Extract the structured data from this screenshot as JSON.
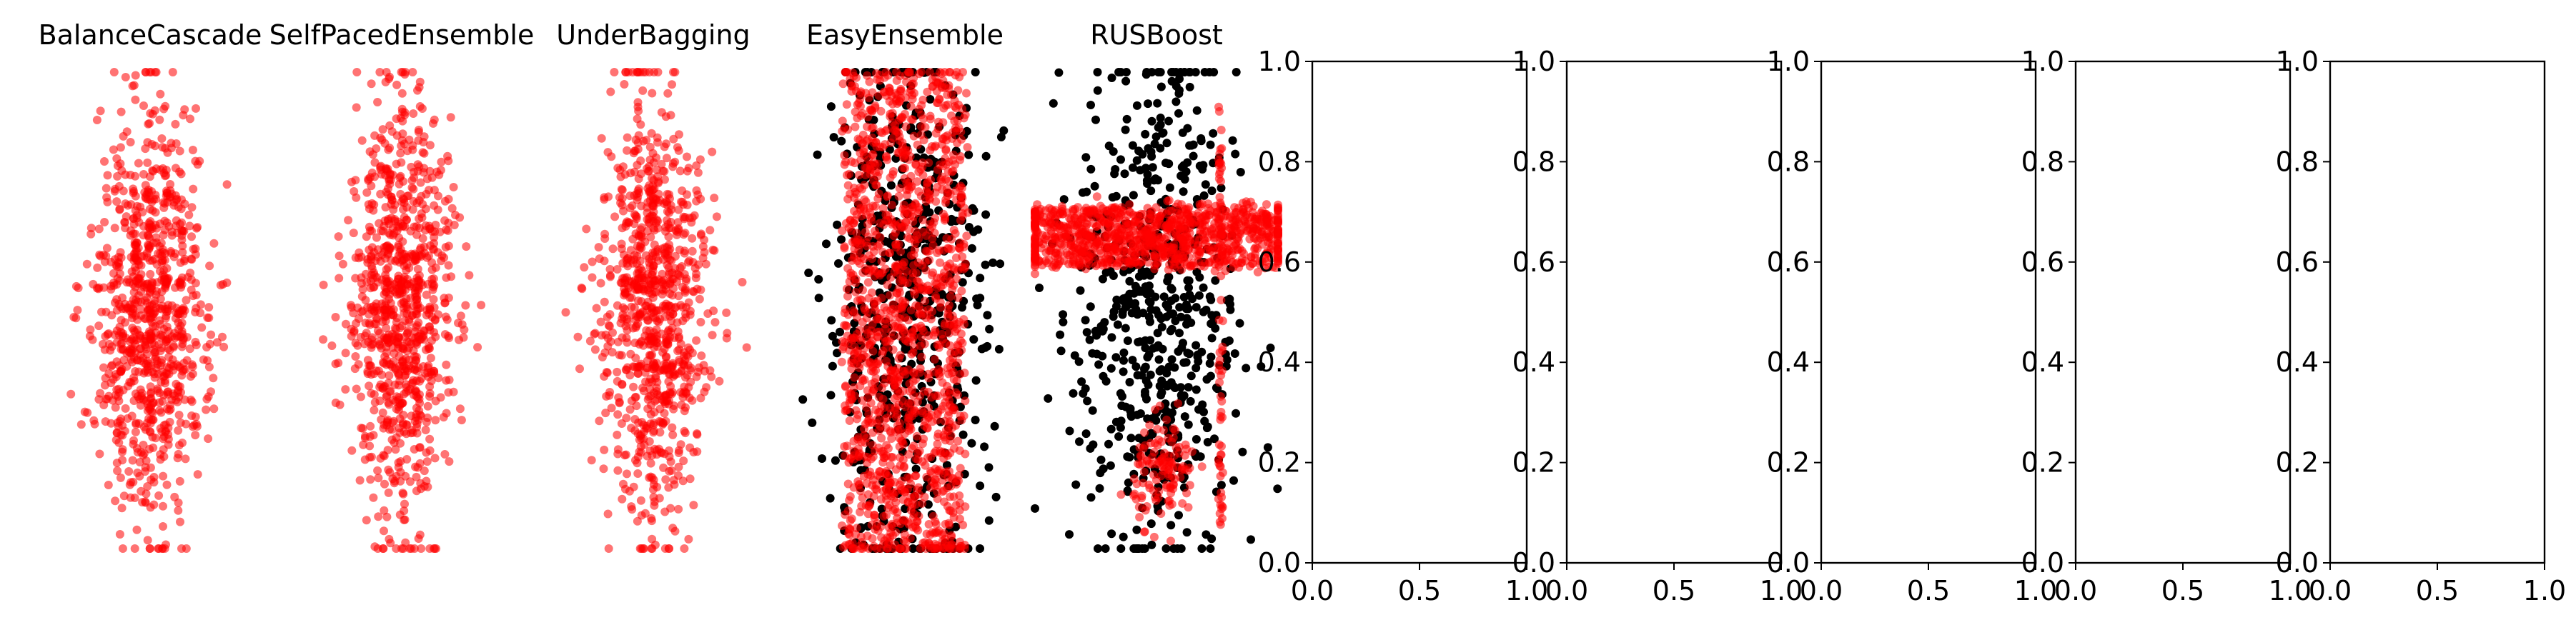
{
  "chart_data": [
    {
      "type": "scatter",
      "title": "BalanceCascade",
      "axis": "off",
      "series": [
        {
          "color": "#ff0000",
          "alpha": 0.55,
          "count": 900,
          "shape": "diamond-blob",
          "cx": 0.0,
          "cy": 0.0,
          "sx": 1.0,
          "sy": 2.4
        }
      ]
    },
    {
      "type": "scatter",
      "title": "SelfPacedEnsemble",
      "axis": "off",
      "series": [
        {
          "color": "#ff0000",
          "alpha": 0.55,
          "count": 900,
          "shape": "diamond-blob",
          "cx": 0.0,
          "cy": 0.0,
          "sx": 1.0,
          "sy": 2.4
        }
      ]
    },
    {
      "type": "scatter",
      "title": "UnderBagging",
      "axis": "off",
      "series": [
        {
          "color": "#ff0000",
          "alpha": 0.55,
          "count": 900,
          "shape": "diamond-blob",
          "cx": 0.0,
          "cy": 0.0,
          "sx": 1.0,
          "sy": 2.4
        }
      ]
    },
    {
      "type": "scatter",
      "title": "EasyEnsemble",
      "axis": "off",
      "series": [
        {
          "color": "#000000",
          "alpha": 1.0,
          "count": 600,
          "shape": "gaussian",
          "cx": 0.0,
          "cy": 0.0,
          "sx": 0.9,
          "sy": 1.55
        },
        {
          "color": "#ff0000",
          "alpha": 0.55,
          "count": 1400,
          "shape": "rectangle",
          "cx": 0.0,
          "cy": 0.0,
          "sx": 1.35,
          "sy": 2.9
        }
      ]
    },
    {
      "type": "scatter",
      "title": "RUSBoost",
      "axis": "off",
      "series": [
        {
          "color": "#000000",
          "alpha": 1.0,
          "count": 600,
          "shape": "gaussian",
          "cx": 0.0,
          "cy": 0.0,
          "sx": 0.9,
          "sy": 1.55
        },
        {
          "color": "#ff0000",
          "alpha": 0.55,
          "count": 1000,
          "shape": "band",
          "cx": 0.0,
          "cy": 0.9,
          "sx": 3.0,
          "sy": 0.35
        },
        {
          "color": "#ff0000",
          "alpha": 0.55,
          "count": 120,
          "shape": "blob",
          "cx": 0.2,
          "cy": -1.9,
          "sx": 0.35,
          "sy": 0.3
        },
        {
          "color": "#ff0000",
          "alpha": 0.55,
          "count": 80,
          "shape": "vertical-strip",
          "cx": 1.45,
          "cy": 0.0,
          "sx": 0.05,
          "sy": 2.6
        }
      ]
    },
    {
      "type": "scatter",
      "title": "",
      "xlim": [
        0,
        1
      ],
      "ylim": [
        0,
        1
      ],
      "xticks": [
        "0.0",
        "0.5",
        "1.0"
      ],
      "yticks": [
        "0.0",
        "0.2",
        "0.4",
        "0.6",
        "0.8",
        "1.0"
      ],
      "series": []
    },
    {
      "type": "scatter",
      "title": "",
      "xlim": [
        0,
        1
      ],
      "ylim": [
        0,
        1
      ],
      "xticks": [
        "0.0",
        "0.5",
        "1.0"
      ],
      "yticks": [
        "0.0",
        "0.2",
        "0.4",
        "0.6",
        "0.8",
        "1.0"
      ],
      "series": []
    },
    {
      "type": "scatter",
      "title": "",
      "xlim": [
        0,
        1
      ],
      "ylim": [
        0,
        1
      ],
      "xticks": [
        "0.0",
        "0.5",
        "1.0"
      ],
      "yticks": [
        "0.0",
        "0.2",
        "0.4",
        "0.6",
        "0.8",
        "1.0"
      ],
      "series": []
    },
    {
      "type": "scatter",
      "title": "",
      "xlim": [
        0,
        1
      ],
      "ylim": [
        0,
        1
      ],
      "xticks": [
        "0.0",
        "0.5",
        "1.0"
      ],
      "yticks": [
        "0.0",
        "0.2",
        "0.4",
        "0.6",
        "0.8",
        "1.0"
      ],
      "series": []
    },
    {
      "type": "scatter",
      "title": "",
      "xlim": [
        0,
        1
      ],
      "ylim": [
        0,
        1
      ],
      "xticks": [
        "0.0",
        "0.5",
        "1.0"
      ],
      "yticks": [
        "0.0",
        "0.2",
        "0.4",
        "0.6",
        "0.8",
        "1.0"
      ],
      "series": []
    }
  ]
}
